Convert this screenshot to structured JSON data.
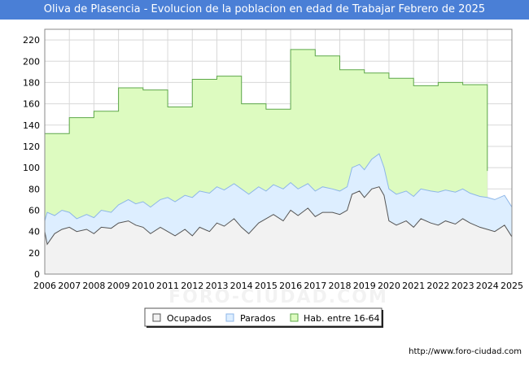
{
  "title": "Oliva de Plasencia - Evolucion de la poblacion en edad de Trabajar Febrero de 2025",
  "footer_url": "http://www.foro-ciudad.com",
  "watermark": "FORO-CIUDAD.COM",
  "colors": {
    "title_bg": "#4a7fd6",
    "ocupados_fill": "#f2f2f2",
    "ocupados_line": "#555555",
    "parados_fill": "#ddeeff",
    "parados_line": "#8db6e8",
    "hab_fill": "#ddfbc0",
    "hab_line": "#5ea84a",
    "grid": "#d8d8d8"
  },
  "chart_data": {
    "type": "area",
    "title": "Oliva de Plasencia - Evolucion de la poblacion en edad de Trabajar Febrero de 2025",
    "xlim": [
      2006,
      2025
    ],
    "ylim": [
      0,
      230
    ],
    "x_ticks": [
      2006,
      2007,
      2008,
      2009,
      2010,
      2011,
      2012,
      2013,
      2014,
      2015,
      2016,
      2017,
      2018,
      2019,
      2020,
      2021,
      2022,
      2023,
      2024,
      2025
    ],
    "y_ticks": [
      0,
      20,
      40,
      60,
      80,
      100,
      120,
      140,
      160,
      180,
      200,
      220
    ],
    "legend": [
      {
        "key": "ocupados",
        "label": "Ocupados"
      },
      {
        "key": "parados",
        "label": "Parados"
      },
      {
        "key": "hab",
        "label": "Hab. entre 16-64"
      }
    ],
    "series": [
      {
        "name": "Hab. entre 16-64",
        "key": "hab",
        "annual_values": {
          "years": [
            2006,
            2007,
            2008,
            2009,
            2010,
            2011,
            2012,
            2013,
            2014,
            2015,
            2016,
            2017,
            2018,
            2019,
            2020,
            2021,
            2022,
            2023
          ],
          "values": [
            132,
            147,
            153,
            175,
            173,
            157,
            183,
            186,
            160,
            155,
            211,
            205,
            192,
            189,
            184,
            177,
            180,
            178
          ]
        },
        "last_value": 97
      },
      {
        "name": "Parados (upper envelope = Ocupados + Parados)",
        "key": "parados",
        "x": [
          2006.0,
          2006.1,
          2006.4,
          2006.7,
          2007.0,
          2007.3,
          2007.7,
          2008.0,
          2008.3,
          2008.7,
          2009.0,
          2009.4,
          2009.7,
          2010.0,
          2010.3,
          2010.7,
          2011.0,
          2011.3,
          2011.7,
          2012.0,
          2012.3,
          2012.7,
          2013.0,
          2013.3,
          2013.7,
          2014.0,
          2014.3,
          2014.7,
          2015.0,
          2015.3,
          2015.7,
          2016.0,
          2016.3,
          2016.7,
          2017.0,
          2017.3,
          2017.7,
          2018.0,
          2018.3,
          2018.5,
          2018.8,
          2019.0,
          2019.3,
          2019.6,
          2019.8,
          2020.0,
          2020.3,
          2020.7,
          2021.0,
          2021.3,
          2021.7,
          2022.0,
          2022.3,
          2022.7,
          2023.0,
          2023.3,
          2023.7,
          2024.0,
          2024.3,
          2024.7,
          2025.0
        ],
        "values": [
          50,
          58,
          55,
          60,
          58,
          52,
          56,
          53,
          60,
          58,
          65,
          70,
          66,
          68,
          63,
          70,
          72,
          68,
          74,
          72,
          78,
          76,
          82,
          79,
          85,
          80,
          75,
          82,
          78,
          84,
          80,
          86,
          80,
          85,
          78,
          82,
          80,
          78,
          82,
          100,
          103,
          98,
          108,
          113,
          100,
          80,
          75,
          78,
          73,
          80,
          78,
          77,
          79,
          77,
          80,
          76,
          73,
          72,
          70,
          74,
          63
        ]
      },
      {
        "name": "Ocupados",
        "key": "ocupados",
        "x": [
          2006.0,
          2006.1,
          2006.4,
          2006.7,
          2007.0,
          2007.3,
          2007.7,
          2008.0,
          2008.3,
          2008.7,
          2009.0,
          2009.4,
          2009.7,
          2010.0,
          2010.3,
          2010.7,
          2011.0,
          2011.3,
          2011.7,
          2012.0,
          2012.3,
          2012.7,
          2013.0,
          2013.3,
          2013.7,
          2014.0,
          2014.3,
          2014.7,
          2015.0,
          2015.3,
          2015.7,
          2016.0,
          2016.3,
          2016.7,
          2017.0,
          2017.3,
          2017.7,
          2018.0,
          2018.3,
          2018.5,
          2018.8,
          2019.0,
          2019.3,
          2019.6,
          2019.8,
          2020.0,
          2020.3,
          2020.7,
          2021.0,
          2021.3,
          2021.7,
          2022.0,
          2022.3,
          2022.7,
          2023.0,
          2023.3,
          2023.7,
          2024.0,
          2024.3,
          2024.7,
          2025.0
        ],
        "values": [
          40,
          28,
          38,
          42,
          44,
          40,
          42,
          38,
          44,
          43,
          48,
          50,
          46,
          44,
          38,
          44,
          40,
          36,
          42,
          36,
          44,
          40,
          48,
          45,
          52,
          44,
          38,
          48,
          52,
          56,
          50,
          60,
          55,
          62,
          54,
          58,
          58,
          56,
          60,
          75,
          78,
          72,
          80,
          82,
          74,
          50,
          46,
          50,
          44,
          52,
          48,
          46,
          50,
          47,
          52,
          48,
          44,
          42,
          40,
          46,
          35
        ]
      }
    ]
  }
}
